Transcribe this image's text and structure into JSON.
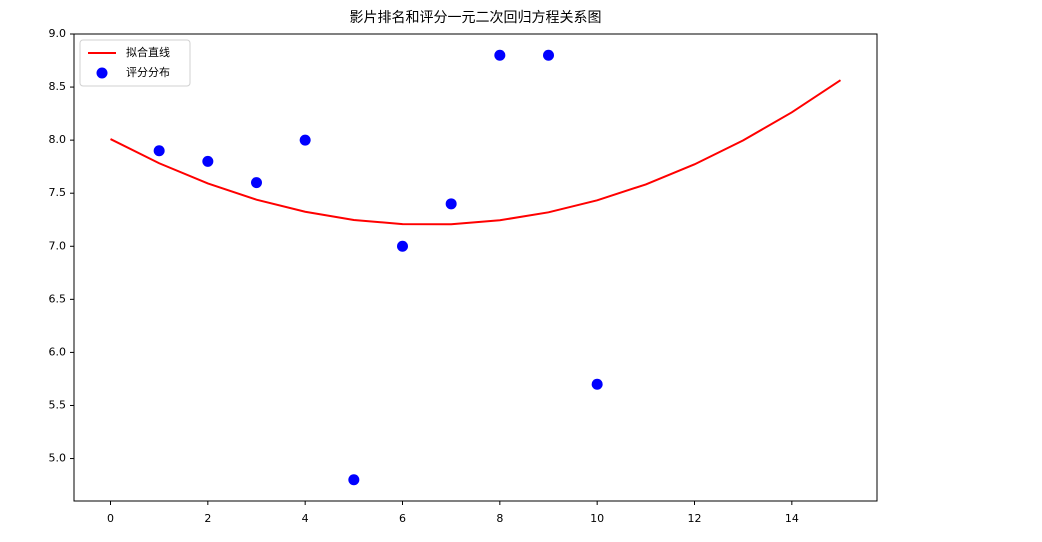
{
  "chart_data": {
    "type": "line",
    "title": "影片排名和评分一元二次回归方程关系图",
    "xlim": [
      -0.75,
      15.75
    ],
    "ylim": [
      4.6,
      9.0
    ],
    "xticks": [
      0,
      2,
      4,
      6,
      8,
      10,
      12,
      14
    ],
    "yticks": [
      {
        "value": 5.0,
        "label": "5.0"
      },
      5.5,
      {
        "value": 6.0,
        "label": "6.0"
      },
      6.5,
      {
        "value": 7.0,
        "label": "7.0"
      },
      7.5,
      {
        "value": 8.0,
        "label": "8.0"
      },
      8.5,
      {
        "value": 9.0,
        "label": "9.0"
      }
    ],
    "grid": false,
    "legend": "upper left",
    "series": [
      {
        "name": "拟合直线",
        "color": "#ff0000",
        "type": "line",
        "x": [
          0,
          1,
          2,
          3,
          4,
          5,
          6,
          7,
          8,
          9,
          10,
          11,
          12,
          13,
          14,
          15
        ],
        "values": [
          8.01,
          7.782,
          7.592,
          7.439,
          7.325,
          7.248,
          7.209,
          7.208,
          7.245,
          7.32,
          7.433,
          7.583,
          7.772,
          7.998,
          8.262,
          8.565
        ]
      },
      {
        "name": "评分分布",
        "color": "#0000ff",
        "type": "scatter",
        "x": [
          1,
          2,
          3,
          4,
          5,
          6,
          7,
          8,
          9,
          10
        ],
        "values": [
          7.9,
          7.8,
          7.6,
          8.0,
          4.8,
          7.0,
          7.4,
          8.8,
          8.8,
          5.7
        ]
      }
    ]
  }
}
